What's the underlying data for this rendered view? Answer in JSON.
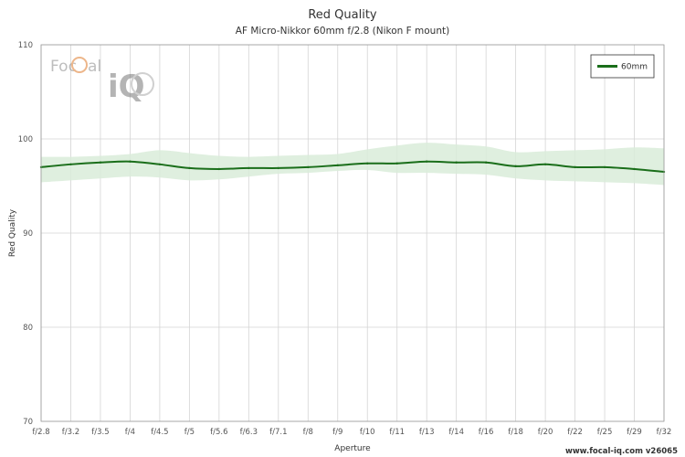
{
  "chart_data": {
    "type": "line",
    "title": "Red Quality",
    "subtitle": "AF Micro-Nikkor 60mm f/2.8 (Nikon F mount)",
    "xlabel": "Aperture",
    "ylabel": "Red Quality",
    "categories": [
      "f/2.8",
      "f/3.2",
      "f/3.5",
      "f/4",
      "f/4.5",
      "f/5",
      "f/5.6",
      "f/6.3",
      "f/7.1",
      "f/8",
      "f/9",
      "f/10",
      "f/11",
      "f/13",
      "f/14",
      "f/16",
      "f/18",
      "f/20",
      "f/22",
      "f/25",
      "f/29",
      "f/32"
    ],
    "ylim": [
      70,
      110
    ],
    "yticks": [
      70,
      80,
      90,
      100,
      110
    ],
    "grid": true,
    "legend_position": "top-right",
    "series": [
      {
        "name": "60mm",
        "color": "#1a6e1a",
        "band_color": "#d9ecd9",
        "values": [
          97.0,
          97.3,
          97.5,
          97.6,
          97.3,
          96.9,
          96.8,
          96.9,
          96.9,
          97.0,
          97.2,
          97.4,
          97.4,
          97.6,
          97.5,
          97.5,
          97.1,
          97.3,
          97.0,
          97.0,
          96.8,
          96.5
        ],
        "upper": [
          98.1,
          98.1,
          98.2,
          98.4,
          98.8,
          98.5,
          98.2,
          98.1,
          98.2,
          98.3,
          98.4,
          98.9,
          99.3,
          99.6,
          99.4,
          99.2,
          98.6,
          98.7,
          98.8,
          98.9,
          99.1,
          99.0
        ],
        "lower": [
          95.4,
          95.6,
          95.8,
          96.0,
          95.9,
          95.6,
          95.7,
          96.0,
          96.3,
          96.4,
          96.6,
          96.7,
          96.4,
          96.4,
          96.3,
          96.2,
          95.8,
          95.6,
          95.5,
          95.4,
          95.3,
          95.1
        ]
      }
    ]
  },
  "logo": {
    "part1": "Foc",
    "part2": "al",
    "part3": "iQ",
    "brand_color": "#e07b2b"
  },
  "footer": {
    "text": "www.focal-iq.com  v26065"
  }
}
